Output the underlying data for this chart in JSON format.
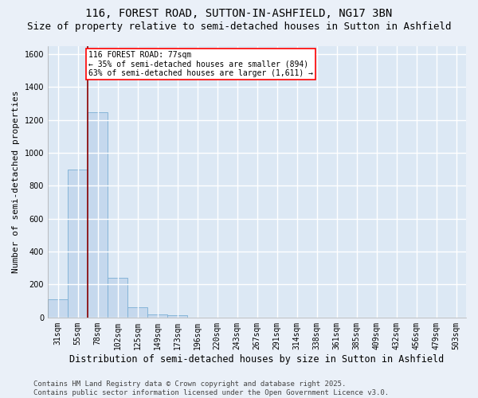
{
  "title1": "116, FOREST ROAD, SUTTON-IN-ASHFIELD, NG17 3BN",
  "title2": "Size of property relative to semi-detached houses in Sutton in Ashfield",
  "xlabel": "Distribution of semi-detached houses by size in Sutton in Ashfield",
  "ylabel": "Number of semi-detached properties",
  "categories": [
    "31sqm",
    "55sqm",
    "78sqm",
    "102sqm",
    "125sqm",
    "149sqm",
    "173sqm",
    "196sqm",
    "220sqm",
    "243sqm",
    "267sqm",
    "291sqm",
    "314sqm",
    "338sqm",
    "361sqm",
    "385sqm",
    "409sqm",
    "432sqm",
    "456sqm",
    "479sqm",
    "503sqm"
  ],
  "values": [
    110,
    900,
    1245,
    240,
    60,
    20,
    15,
    0,
    0,
    0,
    0,
    0,
    0,
    0,
    0,
    0,
    0,
    0,
    0,
    0,
    0
  ],
  "bar_color": "#c5d8ed",
  "bar_edge_color": "#7aafd4",
  "vline_color": "#8b0000",
  "annotation_text": "116 FOREST ROAD: 77sqm\n← 35% of semi-detached houses are smaller (894)\n63% of semi-detached houses are larger (1,611) →",
  "ylim": [
    0,
    1650
  ],
  "yticks": [
    0,
    200,
    400,
    600,
    800,
    1000,
    1200,
    1400,
    1600
  ],
  "bg_color": "#eaf0f8",
  "plot_bg_color": "#dce8f4",
  "grid_color": "white",
  "footer": "Contains HM Land Registry data © Crown copyright and database right 2025.\nContains public sector information licensed under the Open Government Licence v3.0.",
  "title1_fontsize": 10,
  "title2_fontsize": 9,
  "xlabel_fontsize": 8.5,
  "ylabel_fontsize": 8,
  "tick_fontsize": 7,
  "footer_fontsize": 6.5
}
